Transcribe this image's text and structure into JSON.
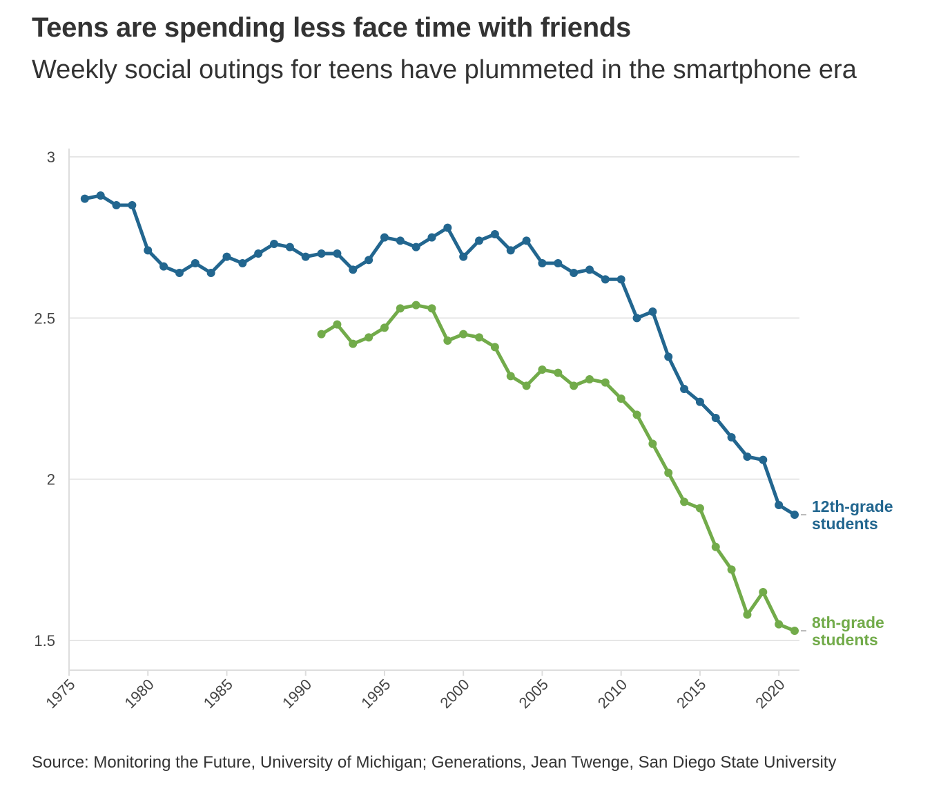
{
  "chart_data": {
    "type": "line",
    "title": "Teens are spending less face time with friends",
    "subtitle": "Weekly social outings for teens have plummeted in the smartphone era",
    "source": "Source: Monitoring the Future, University of Michigan; Generations, Jean Twenge, San Diego State University",
    "xlabel": "",
    "ylabel": "",
    "xlim": [
      1975,
      2021
    ],
    "ylim": [
      1.4,
      3
    ],
    "x_ticks": [
      1975,
      1980,
      1985,
      1990,
      1995,
      2000,
      2005,
      2010,
      2015,
      2020
    ],
    "y_ticks": [
      1.5,
      2,
      2.5,
      3
    ],
    "y_tick_labels": [
      "1.5",
      "2",
      "2.5",
      "3"
    ],
    "grid": true,
    "series": [
      {
        "name": "12th-grade students",
        "label_lines": [
          "12th-grade",
          "students"
        ],
        "color": "#22668f",
        "x": [
          1976,
          1977,
          1978,
          1979,
          1980,
          1981,
          1982,
          1983,
          1984,
          1985,
          1986,
          1987,
          1988,
          1989,
          1990,
          1991,
          1992,
          1993,
          1994,
          1995,
          1996,
          1997,
          1998,
          1999,
          2000,
          2001,
          2002,
          2003,
          2004,
          2005,
          2006,
          2007,
          2008,
          2009,
          2010,
          2011,
          2012,
          2013,
          2014,
          2015,
          2016,
          2017,
          2018,
          2019,
          2020,
          2021
        ],
        "values": [
          2.87,
          2.88,
          2.85,
          2.85,
          2.71,
          2.66,
          2.64,
          2.67,
          2.64,
          2.69,
          2.67,
          2.7,
          2.73,
          2.72,
          2.69,
          2.7,
          2.7,
          2.65,
          2.68,
          2.75,
          2.74,
          2.72,
          2.75,
          2.78,
          2.69,
          2.74,
          2.76,
          2.71,
          2.74,
          2.67,
          2.67,
          2.64,
          2.65,
          2.62,
          2.62,
          2.5,
          2.52,
          2.38,
          2.28,
          2.24,
          2.19,
          2.13,
          2.07,
          2.06,
          1.92,
          1.89
        ]
      },
      {
        "name": "8th-grade students",
        "label_lines": [
          "8th-grade",
          "students"
        ],
        "color": "#72ab4a",
        "x": [
          1991,
          1992,
          1993,
          1994,
          1995,
          1996,
          1997,
          1998,
          1999,
          2000,
          2001,
          2002,
          2003,
          2004,
          2005,
          2006,
          2007,
          2008,
          2009,
          2010,
          2011,
          2012,
          2013,
          2014,
          2015,
          2016,
          2017,
          2018,
          2019,
          2020,
          2021
        ],
        "values": [
          2.45,
          2.48,
          2.42,
          2.44,
          2.47,
          2.53,
          2.54,
          2.53,
          2.43,
          2.45,
          2.44,
          2.41,
          2.32,
          2.29,
          2.34,
          2.33,
          2.29,
          2.31,
          2.3,
          2.25,
          2.2,
          2.11,
          2.02,
          1.93,
          1.91,
          1.79,
          1.72,
          1.58,
          1.65,
          1.55,
          1.53
        ]
      }
    ]
  },
  "colors": {
    "text": "#333333",
    "axis_text": "#444444",
    "grid": "#e6e6e6",
    "axis": "#dddddd",
    "leader": "#bbbbbb"
  }
}
